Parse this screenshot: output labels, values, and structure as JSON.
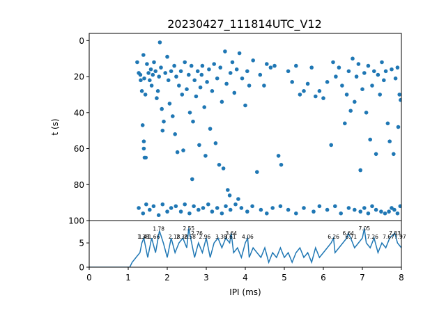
{
  "chart_data": [
    {
      "type": "scatter",
      "title": "20230427_111814UTC_V12",
      "ylabel": "t (s)",
      "xlim": [
        0,
        8
      ],
      "ylim": [
        100,
        -4
      ],
      "y_inverted": true,
      "xticks_shown": false,
      "yticks": [
        0,
        20,
        40,
        60,
        80,
        100
      ],
      "color": "#1f77b4",
      "series": [
        {
          "points": [
            [
              1.23,
              12
            ],
            [
              1.27,
              18
            ],
            [
              1.31,
              19
            ],
            [
              1.32,
              22
            ],
            [
              1.35,
              28
            ],
            [
              1.37,
              47
            ],
            [
              1.4,
              56
            ],
            [
              1.4,
              60
            ],
            [
              1.42,
              65
            ],
            [
              1.45,
              65
            ],
            [
              1.39,
              8
            ],
            [
              1.41,
              21
            ],
            [
              1.44,
              30
            ],
            [
              1.48,
              13
            ],
            [
              1.52,
              18
            ],
            [
              1.55,
              22
            ],
            [
              1.58,
              16
            ],
            [
              1.6,
              25
            ],
            [
              1.63,
              19
            ],
            [
              1.66,
              12
            ],
            [
              1.7,
              17
            ],
            [
              1.73,
              32
            ],
            [
              1.76,
              28
            ],
            [
              1.79,
              20
            ],
            [
              1.81,
              1
            ],
            [
              1.84,
              15
            ],
            [
              1.86,
              38
            ],
            [
              1.88,
              50
            ],
            [
              1.91,
              45
            ],
            [
              1.95,
              18
            ],
            [
              2.0,
              9
            ],
            [
              2.03,
              22
            ],
            [
              2.06,
              35
            ],
            [
              2.1,
              17
            ],
            [
              2.14,
              42
            ],
            [
              2.18,
              14
            ],
            [
              2.2,
              52
            ],
            [
              2.23,
              20
            ],
            [
              2.26,
              62
            ],
            [
              2.3,
              25
            ],
            [
              2.35,
              17
            ],
            [
              2.38,
              30
            ],
            [
              2.41,
              61
            ],
            [
              2.45,
              12
            ],
            [
              2.5,
              27
            ],
            [
              2.55,
              19
            ],
            [
              2.58,
              40
            ],
            [
              2.62,
              14
            ],
            [
              2.64,
              77
            ],
            [
              2.66,
              45
            ],
            [
              2.7,
              22
            ],
            [
              2.74,
              31
            ],
            [
              2.78,
              17
            ],
            [
              2.82,
              58
            ],
            [
              2.85,
              26
            ],
            [
              2.88,
              19
            ],
            [
              2.9,
              14
            ],
            [
              2.95,
              37
            ],
            [
              2.98,
              64
            ],
            [
              3.02,
              23
            ],
            [
              3.07,
              16
            ],
            [
              3.1,
              49
            ],
            [
              3.15,
              28
            ],
            [
              3.2,
              13
            ],
            [
              3.24,
              57
            ],
            [
              3.28,
              21
            ],
            [
              3.33,
              69
            ],
            [
              3.36,
              15
            ],
            [
              3.4,
              34
            ],
            [
              3.44,
              71
            ],
            [
              3.48,
              6
            ],
            [
              3.52,
              24
            ],
            [
              3.55,
              83
            ],
            [
              3.6,
              86
            ],
            [
              3.62,
              18
            ],
            [
              3.67,
              12
            ],
            [
              3.72,
              29
            ],
            [
              3.78,
              16
            ],
            [
              3.82,
              88
            ],
            [
              3.85,
              7
            ],
            [
              3.92,
              21
            ],
            [
              4.0,
              36
            ],
            [
              4.05,
              17
            ],
            [
              4.1,
              25
            ],
            [
              4.2,
              11
            ],
            [
              4.3,
              73
            ],
            [
              4.38,
              19
            ],
            [
              4.48,
              25
            ],
            [
              4.55,
              13
            ],
            [
              4.65,
              15
            ],
            [
              4.75,
              14
            ],
            [
              4.85,
              64
            ],
            [
              4.92,
              69
            ],
            [
              5.1,
              17
            ],
            [
              5.2,
              23
            ],
            [
              5.3,
              14
            ],
            [
              5.4,
              30
            ],
            [
              5.5,
              28
            ],
            [
              5.6,
              24
            ],
            [
              5.7,
              15
            ],
            [
              5.8,
              31
            ],
            [
              5.9,
              28
            ],
            [
              6.0,
              32
            ],
            [
              6.1,
              23
            ],
            [
              6.2,
              58
            ],
            [
              6.25,
              12
            ],
            [
              6.32,
              20
            ],
            [
              6.4,
              15
            ],
            [
              6.48,
              25
            ],
            [
              6.55,
              46
            ],
            [
              6.6,
              30
            ],
            [
              6.65,
              17
            ],
            [
              6.7,
              39
            ],
            [
              6.75,
              10
            ],
            [
              6.8,
              34
            ],
            [
              6.85,
              20
            ],
            [
              6.9,
              13
            ],
            [
              6.95,
              72
            ],
            [
              7.0,
              27
            ],
            [
              7.05,
              18
            ],
            [
              7.1,
              40
            ],
            [
              7.15,
              14
            ],
            [
              7.2,
              55
            ],
            [
              7.25,
              25
            ],
            [
              7.3,
              17
            ],
            [
              7.35,
              63
            ],
            [
              7.4,
              19
            ],
            [
              7.45,
              30
            ],
            [
              7.5,
              12
            ],
            [
              7.55,
              22
            ],
            [
              7.6,
              17
            ],
            [
              7.65,
              46
            ],
            [
              7.7,
              56
            ],
            [
              7.75,
              16
            ],
            [
              7.8,
              63
            ],
            [
              7.85,
              21
            ],
            [
              7.9,
              15
            ],
            [
              7.95,
              30
            ],
            [
              7.98,
              33
            ],
            [
              7.92,
              48
            ],
            [
              1.27,
              93
            ],
            [
              1.38,
              96
            ],
            [
              1.46,
              91
            ],
            [
              1.55,
              94
            ],
            [
              1.65,
              92
            ],
            [
              1.78,
              97
            ],
            [
              1.88,
              91
            ],
            [
              2.0,
              95
            ],
            [
              2.1,
              93
            ],
            [
              2.22,
              92
            ],
            [
              2.35,
              95
            ],
            [
              2.45,
              91
            ],
            [
              2.57,
              96
            ],
            [
              2.68,
              92
            ],
            [
              2.8,
              94
            ],
            [
              2.92,
              93
            ],
            [
              3.05,
              91
            ],
            [
              3.15,
              95
            ],
            [
              3.28,
              93
            ],
            [
              3.4,
              96
            ],
            [
              3.5,
              92
            ],
            [
              3.62,
              94
            ],
            [
              3.75,
              91
            ],
            [
              3.9,
              93
            ],
            [
              4.05,
              95
            ],
            [
              4.18,
              92
            ],
            [
              4.4,
              94
            ],
            [
              4.55,
              96
            ],
            [
              4.7,
              93
            ],
            [
              4.9,
              92
            ],
            [
              5.1,
              94
            ],
            [
              5.3,
              96
            ],
            [
              5.5,
              93
            ],
            [
              5.75,
              95
            ],
            [
              5.9,
              92
            ],
            [
              6.1,
              94
            ],
            [
              6.3,
              92
            ],
            [
              6.45,
              96
            ],
            [
              6.65,
              93
            ],
            [
              6.8,
              94
            ],
            [
              6.95,
              95
            ],
            [
              7.05,
              93
            ],
            [
              7.15,
              96
            ],
            [
              7.25,
              92
            ],
            [
              7.35,
              94
            ],
            [
              7.48,
              95
            ],
            [
              7.58,
              96
            ],
            [
              7.68,
              95
            ],
            [
              7.75,
              93
            ],
            [
              7.82,
              94
            ],
            [
              7.9,
              96
            ],
            [
              7.97,
              92
            ]
          ]
        }
      ]
    },
    {
      "type": "line",
      "xlabel": "IPI (ms)",
      "xlim": [
        0,
        8
      ],
      "ylim": [
        0,
        9.6
      ],
      "xticks": [
        0,
        1,
        2,
        3,
        4,
        5,
        6,
        7,
        8
      ],
      "yticks": [
        0,
        5
      ],
      "color": "#1f77b4",
      "series": [
        {
          "x": [
            0,
            0.5,
            1.0,
            1.04,
            1.1,
            1.2,
            1.3,
            1.35,
            1.4,
            1.5,
            1.6,
            1.7,
            1.8,
            1.9,
            2.0,
            2.1,
            2.2,
            2.3,
            2.4,
            2.5,
            2.55,
            2.6,
            2.7,
            2.8,
            2.9,
            3.0,
            3.1,
            3.2,
            3.3,
            3.4,
            3.5,
            3.6,
            3.64,
            3.7,
            3.8,
            3.9,
            4.0,
            4.06,
            4.1,
            4.2,
            4.3,
            4.4,
            4.5,
            4.6,
            4.7,
            4.8,
            4.9,
            5.0,
            5.1,
            5.2,
            5.3,
            5.4,
            5.5,
            5.6,
            5.7,
            5.8,
            5.9,
            6.0,
            6.1,
            6.2,
            6.26,
            6.3,
            6.4,
            6.5,
            6.6,
            6.64,
            6.7,
            6.8,
            6.9,
            7.0,
            7.05,
            7.1,
            7.2,
            7.3,
            7.4,
            7.5,
            7.6,
            7.7,
            7.83,
            7.9,
            8.0
          ],
          "y": [
            0,
            0,
            0,
            0,
            1,
            2,
            3,
            5,
            6,
            2,
            6,
            3,
            7.5,
            5,
            2,
            6,
            3,
            5,
            6,
            4,
            8,
            6,
            2,
            5,
            3,
            6,
            2,
            5,
            6,
            4,
            6,
            5,
            7,
            3,
            4,
            2,
            5,
            6,
            2,
            4,
            3,
            2,
            4,
            1,
            3,
            2,
            4,
            2,
            3,
            1,
            3,
            4,
            2,
            3,
            1,
            4,
            2,
            3,
            4,
            5,
            6,
            3,
            4,
            5,
            6,
            7,
            6,
            4,
            5,
            6,
            8,
            5,
            4,
            6,
            3,
            5,
            4,
            6,
            7,
            5,
            4
          ]
        }
      ],
      "annotations": [
        {
          "text": "1.78",
          "x": 1.78,
          "y": 7.5
        },
        {
          "text": "2.55",
          "x": 2.55,
          "y": 7.6
        },
        {
          "text": "2.76",
          "x": 2.76,
          "y": 6.6
        },
        {
          "text": "3.64",
          "x": 3.64,
          "y": 6.6
        },
        {
          "text": "1.38",
          "x": 1.38,
          "y": 5.9
        },
        {
          "text": "1.41",
          "x": 1.41,
          "y": 5.9
        },
        {
          "text": "1.66",
          "x": 1.66,
          "y": 5.9
        },
        {
          "text": "2.18",
          "x": 2.18,
          "y": 5.9
        },
        {
          "text": "2.38",
          "x": 2.38,
          "y": 5.9
        },
        {
          "text": "2.58",
          "x": 2.58,
          "y": 5.9
        },
        {
          "text": "2.96",
          "x": 2.96,
          "y": 5.9
        },
        {
          "text": "3.38",
          "x": 3.38,
          "y": 5.9
        },
        {
          "text": "3.61",
          "x": 3.61,
          "y": 5.9
        },
        {
          "text": "4.06",
          "x": 4.06,
          "y": 5.9
        },
        {
          "text": "6.26",
          "x": 6.26,
          "y": 5.9
        },
        {
          "text": "6.64",
          "x": 6.64,
          "y": 6.6
        },
        {
          "text": "6.71",
          "x": 6.71,
          "y": 5.9
        },
        {
          "text": "7.05",
          "x": 7.05,
          "y": 7.6
        },
        {
          "text": "7.26",
          "x": 7.26,
          "y": 5.9
        },
        {
          "text": "7.67",
          "x": 7.67,
          "y": 5.9
        },
        {
          "text": "7.83",
          "x": 7.83,
          "y": 6.6
        },
        {
          "text": "7.97",
          "x": 7.97,
          "y": 5.9
        }
      ]
    }
  ]
}
